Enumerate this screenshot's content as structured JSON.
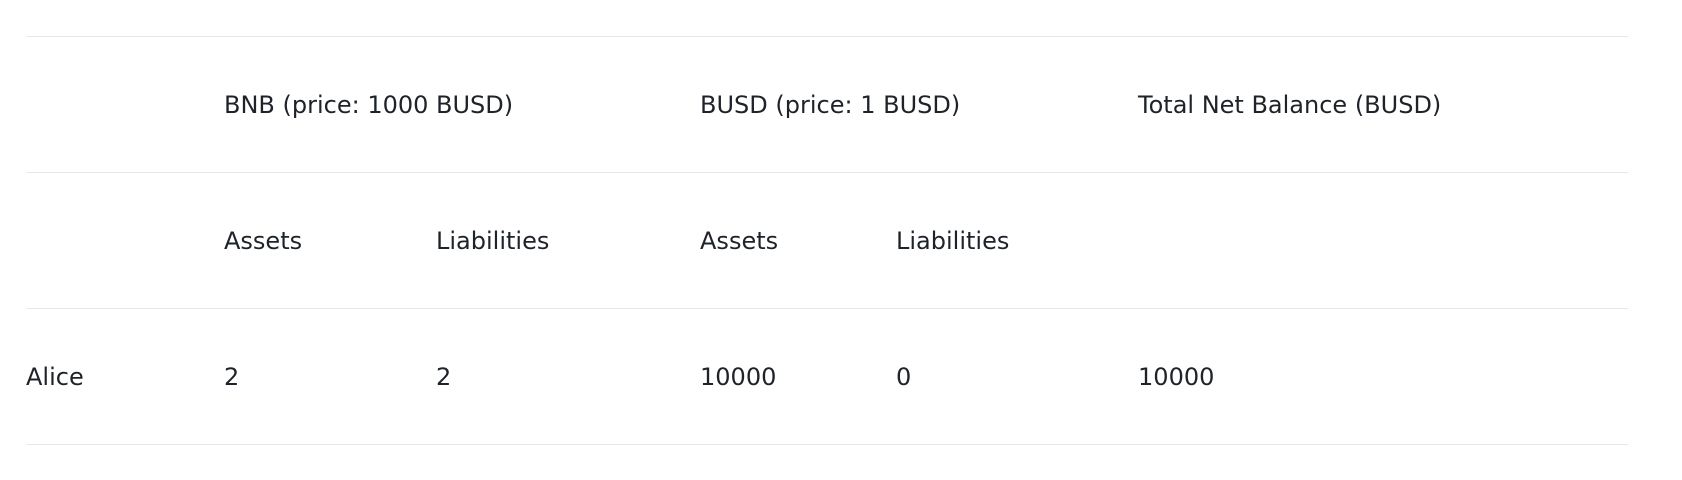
{
  "table": {
    "header_row_1": {
      "col0": "",
      "bnb": "BNB (price: 1000 BUSD)",
      "busd": "BUSD (price: 1 BUSD)",
      "total": "Total Net Balance (BUSD)"
    },
    "header_row_2": {
      "col0": "",
      "bnb_assets": "Assets",
      "bnb_liabilities": "Liabilities",
      "busd_assets": "Assets",
      "busd_liabilities": "Liabilities",
      "total": ""
    },
    "rows": [
      {
        "name": "Alice",
        "bnb_assets": "2",
        "bnb_liabilities": "2",
        "busd_assets": "10000",
        "busd_liabilities": "0",
        "total_net_balance": "10000"
      }
    ]
  }
}
